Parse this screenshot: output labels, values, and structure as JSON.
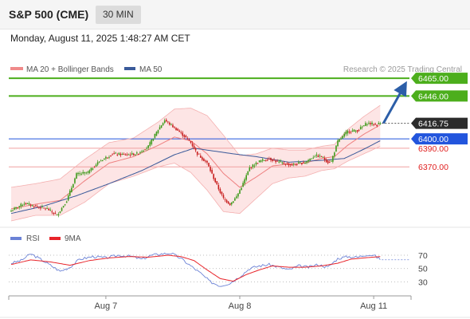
{
  "header": {
    "title": "S&P 500 (CME)",
    "timeframe": "30 MIN",
    "datetime": "Monday, August 11, 2025 1:48:27 AM CET"
  },
  "chart_data": [
    {
      "type": "candlestick",
      "panel": "price",
      "legend": [
        {
          "label": "MA 20 + Bollinger Bands",
          "color": "#f08a8a"
        },
        {
          "label": "MA 50",
          "color": "#3a5a9a"
        }
      ],
      "legend_placement": "top-left",
      "credit": "Research © 2025 Trading Central",
      "x_ticks": [
        "Aug 7",
        "Aug 8",
        "Aug 11"
      ],
      "y_range": [
        6318,
        6472
      ],
      "levels": [
        {
          "value": 6465.0,
          "label": "6465.00",
          "line": "#4cae1c",
          "style": "tag"
        },
        {
          "value": 6446.0,
          "label": "6446.00",
          "line": "#4cae1c",
          "style": "tag"
        },
        {
          "value": 6416.75,
          "label": "6416.75",
          "line": "#555555",
          "style": "current"
        },
        {
          "value": 6400.0,
          "label": "6400.00",
          "line": "#2255dd",
          "style": "tag"
        },
        {
          "value": 6390.0,
          "label": "6390.00",
          "line": "#f0a0a0",
          "style": "text"
        },
        {
          "value": 6370.0,
          "label": "6370.00",
          "line": "#f0a0a0",
          "style": "text"
        }
      ],
      "forecast": {
        "from": 6416.75,
        "to": 6465.0,
        "color": "#2c5ea8"
      },
      "anchors": [
        [
          0,
          6323
        ],
        [
          8,
          6331
        ],
        [
          14,
          6328
        ],
        [
          22,
          6325
        ],
        [
          28,
          6318
        ],
        [
          34,
          6334
        ],
        [
          40,
          6362
        ],
        [
          47,
          6364
        ],
        [
          54,
          6376
        ],
        [
          62,
          6384
        ],
        [
          70,
          6383
        ],
        [
          77,
          6384
        ],
        [
          84,
          6392
        ],
        [
          90,
          6410
        ],
        [
          94,
          6420
        ],
        [
          100,
          6412
        ],
        [
          106,
          6403
        ],
        [
          110,
          6396
        ],
        [
          114,
          6384
        ],
        [
          120,
          6374
        ],
        [
          126,
          6350
        ],
        [
          130,
          6336
        ],
        [
          134,
          6330
        ],
        [
          138,
          6338
        ],
        [
          142,
          6352
        ],
        [
          146,
          6369
        ],
        [
          152,
          6376
        ],
        [
          158,
          6379
        ],
        [
          162,
          6376
        ],
        [
          166,
          6374
        ],
        [
          172,
          6372
        ],
        [
          180,
          6375
        ],
        [
          186,
          6382
        ],
        [
          190,
          6381
        ],
        [
          194,
          6375
        ],
        [
          196,
          6376
        ],
        [
          200,
          6397
        ],
        [
          206,
          6408
        ],
        [
          212,
          6409
        ],
        [
          218,
          6417
        ],
        [
          224,
          6415
        ],
        [
          226,
          6417
        ]
      ],
      "ma20_anchors": [
        [
          0,
          6325
        ],
        [
          15,
          6330
        ],
        [
          30,
          6334
        ],
        [
          45,
          6355
        ],
        [
          60,
          6374
        ],
        [
          75,
          6381
        ],
        [
          90,
          6393
        ],
        [
          100,
          6402
        ],
        [
          110,
          6398
        ],
        [
          120,
          6384
        ],
        [
          130,
          6363
        ],
        [
          140,
          6348
        ],
        [
          150,
          6359
        ],
        [
          160,
          6371
        ],
        [
          170,
          6373
        ],
        [
          180,
          6374
        ],
        [
          190,
          6379
        ],
        [
          198,
          6381
        ],
        [
          206,
          6393
        ],
        [
          216,
          6405
        ],
        [
          226,
          6415
        ]
      ],
      "ma50_anchors": [
        [
          0,
          6320
        ],
        [
          20,
          6328
        ],
        [
          40,
          6339
        ],
        [
          60,
          6352
        ],
        [
          80,
          6366
        ],
        [
          100,
          6383
        ],
        [
          112,
          6390
        ],
        [
          124,
          6387
        ],
        [
          136,
          6384
        ],
        [
          150,
          6381
        ],
        [
          170,
          6375
        ],
        [
          190,
          6377
        ],
        [
          204,
          6379
        ],
        [
          216,
          6389
        ],
        [
          226,
          6398
        ]
      ],
      "band_anchors": [
        [
          0,
          6348,
          6312
        ],
        [
          15,
          6352,
          6318
        ],
        [
          30,
          6357,
          6318
        ],
        [
          45,
          6378,
          6332
        ],
        [
          60,
          6396,
          6352
        ],
        [
          75,
          6401,
          6360
        ],
        [
          90,
          6418,
          6370
        ],
        [
          100,
          6432,
          6374
        ],
        [
          110,
          6433,
          6364
        ],
        [
          120,
          6425,
          6345
        ],
        [
          130,
          6404,
          6322
        ],
        [
          140,
          6382,
          6320
        ],
        [
          150,
          6384,
          6336
        ],
        [
          160,
          6390,
          6352
        ],
        [
          170,
          6388,
          6358
        ],
        [
          180,
          6388,
          6360
        ],
        [
          190,
          6392,
          6366
        ],
        [
          198,
          6394,
          6368
        ],
        [
          206,
          6410,
          6376
        ],
        [
          216,
          6424,
          6384
        ],
        [
          226,
          6436,
          6392
        ]
      ]
    },
    {
      "type": "line",
      "panel": "rsi",
      "legend": [
        {
          "label": "RSI",
          "color": "#6b82d6"
        },
        {
          "label": "9MA",
          "color": "#e8242a"
        }
      ],
      "legend_placement": "top-left",
      "y_range": [
        15,
        82
      ],
      "y_ticks": [
        {
          "value": 70,
          "label": "70"
        },
        {
          "value": 50,
          "label": "50"
        },
        {
          "value": 30,
          "label": "30"
        }
      ],
      "rsi_anchors": [
        [
          0,
          58
        ],
        [
          6,
          62
        ],
        [
          12,
          72
        ],
        [
          18,
          64
        ],
        [
          24,
          55
        ],
        [
          30,
          46
        ],
        [
          36,
          52
        ],
        [
          42,
          64
        ],
        [
          50,
          68
        ],
        [
          58,
          66
        ],
        [
          66,
          70
        ],
        [
          74,
          68
        ],
        [
          80,
          64
        ],
        [
          86,
          70
        ],
        [
          92,
          72
        ],
        [
          98,
          73
        ],
        [
          104,
          65
        ],
        [
          110,
          54
        ],
        [
          116,
          43
        ],
        [
          122,
          30
        ],
        [
          128,
          24
        ],
        [
          134,
          28
        ],
        [
          140,
          38
        ],
        [
          146,
          50
        ],
        [
          152,
          54
        ],
        [
          158,
          56
        ],
        [
          164,
          52
        ],
        [
          170,
          48
        ],
        [
          176,
          54
        ],
        [
          182,
          52
        ],
        [
          188,
          56
        ],
        [
          194,
          52
        ],
        [
          200,
          65
        ],
        [
          206,
          68
        ],
        [
          212,
          67
        ],
        [
          218,
          71
        ],
        [
          222,
          70
        ],
        [
          226,
          64
        ]
      ],
      "ma9_anchors": [
        [
          0,
          56
        ],
        [
          12,
          63
        ],
        [
          24,
          60
        ],
        [
          36,
          55
        ],
        [
          48,
          62
        ],
        [
          60,
          66
        ],
        [
          72,
          68
        ],
        [
          84,
          67
        ],
        [
          96,
          70
        ],
        [
          104,
          68
        ],
        [
          112,
          62
        ],
        [
          120,
          48
        ],
        [
          128,
          35
        ],
        [
          136,
          31
        ],
        [
          144,
          41
        ],
        [
          152,
          48
        ],
        [
          160,
          54
        ],
        [
          170,
          52
        ],
        [
          180,
          52
        ],
        [
          190,
          54
        ],
        [
          200,
          58
        ],
        [
          208,
          64
        ],
        [
          216,
          66
        ],
        [
          226,
          68
        ]
      ]
    }
  ]
}
